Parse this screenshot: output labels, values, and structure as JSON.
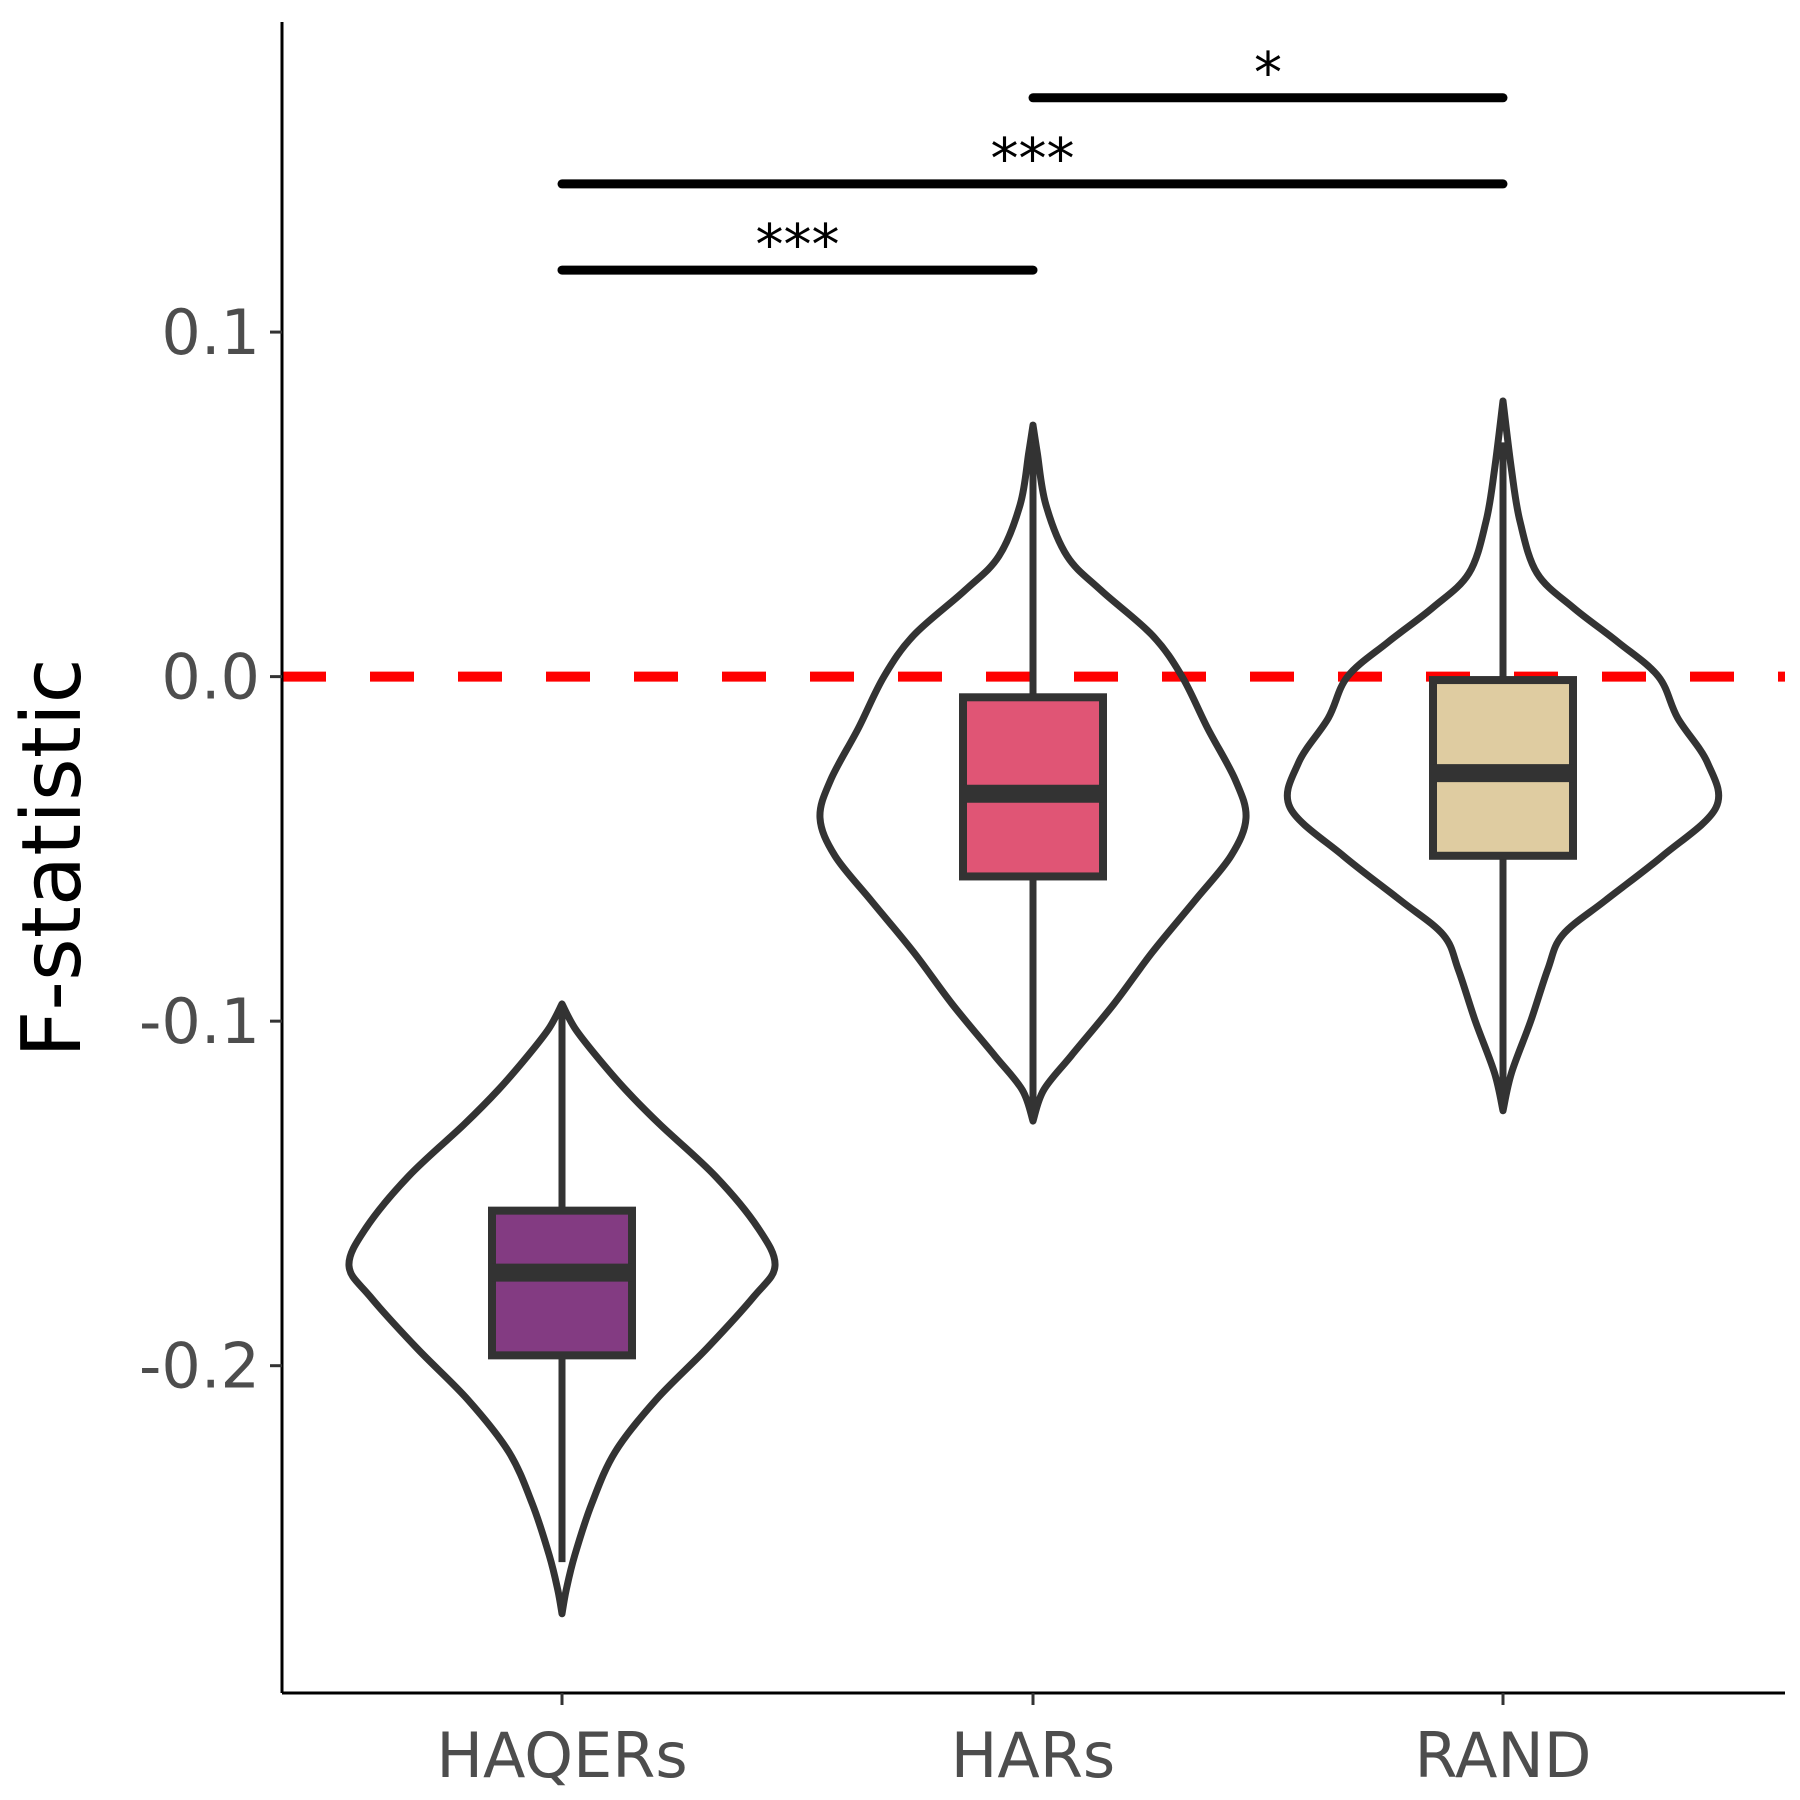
{
  "chart_data": {
    "type": "violin",
    "title": "",
    "xlabel": "",
    "ylabel": "F-statistic",
    "ylim": [
      -0.295,
      0.19
    ],
    "yticks": [
      -0.2,
      -0.1,
      0.0,
      0.1
    ],
    "ytick_labels": [
      "-0.2",
      "-0.1",
      "0.0",
      "0.1"
    ],
    "categories": [
      "HAQERs",
      "HARs",
      "RAND"
    ],
    "grid": false,
    "legend": "none",
    "reference_line": {
      "y": 0.0,
      "color": "#ff0000",
      "style": "dashed"
    },
    "groups": [
      {
        "name": "HAQERs",
        "fill": "#833b82",
        "box": {
          "q1": -0.197,
          "median": -0.173,
          "q3": -0.155,
          "whisker_low": -0.257,
          "whisker_high": -0.095
        },
        "violin_min": -0.272,
        "violin_max": -0.095,
        "violin_profile": [
          [
            -0.272,
            0.0
          ],
          [
            -0.265,
            0.02
          ],
          [
            -0.255,
            0.06
          ],
          [
            -0.24,
            0.14
          ],
          [
            -0.225,
            0.25
          ],
          [
            -0.21,
            0.44
          ],
          [
            -0.195,
            0.68
          ],
          [
            -0.18,
            0.9
          ],
          [
            -0.171,
            1.0
          ],
          [
            -0.16,
            0.92
          ],
          [
            -0.145,
            0.72
          ],
          [
            -0.13,
            0.46
          ],
          [
            -0.12,
            0.3
          ],
          [
            -0.11,
            0.16
          ],
          [
            -0.102,
            0.06
          ],
          [
            -0.095,
            0.0
          ]
        ]
      },
      {
        "name": "HARs",
        "fill": "#e05575",
        "box": {
          "q1": -0.058,
          "median": -0.034,
          "q3": -0.006,
          "whisker_low": -0.128,
          "whisker_high": 0.068
        },
        "violin_min": -0.129,
        "violin_max": 0.073,
        "violin_profile": [
          [
            -0.129,
            0.0
          ],
          [
            -0.12,
            0.05
          ],
          [
            -0.11,
            0.18
          ],
          [
            -0.095,
            0.38
          ],
          [
            -0.08,
            0.56
          ],
          [
            -0.065,
            0.76
          ],
          [
            -0.052,
            0.93
          ],
          [
            -0.041,
            1.0
          ],
          [
            -0.03,
            0.95
          ],
          [
            -0.015,
            0.82
          ],
          [
            0.0,
            0.7
          ],
          [
            0.012,
            0.56
          ],
          [
            0.025,
            0.32
          ],
          [
            0.035,
            0.16
          ],
          [
            0.05,
            0.06
          ],
          [
            0.065,
            0.02
          ],
          [
            0.073,
            0.0
          ]
        ]
      },
      {
        "name": "RAND",
        "fill": "#dfcca1",
        "box": {
          "q1": -0.052,
          "median": -0.028,
          "q3": -0.001,
          "whisker_low": -0.126,
          "whisker_high": 0.068
        },
        "violin_min": -0.126,
        "violin_max": 0.08,
        "violin_profile": [
          [
            -0.126,
            0.0
          ],
          [
            -0.115,
            0.04
          ],
          [
            -0.1,
            0.13
          ],
          [
            -0.085,
            0.21
          ],
          [
            -0.075,
            0.28
          ],
          [
            -0.065,
            0.48
          ],
          [
            -0.052,
            0.75
          ],
          [
            -0.038,
            1.0
          ],
          [
            -0.025,
            0.96
          ],
          [
            -0.012,
            0.82
          ],
          [
            0.0,
            0.73
          ],
          [
            0.01,
            0.54
          ],
          [
            0.02,
            0.33
          ],
          [
            0.03,
            0.16
          ],
          [
            0.045,
            0.08
          ],
          [
            0.06,
            0.04
          ],
          [
            0.08,
            0.0
          ]
        ]
      }
    ],
    "comparisons": [
      {
        "from": "HAQERs",
        "to": "HARs",
        "y": 0.118,
        "label": "***"
      },
      {
        "from": "HAQERs",
        "to": "RAND",
        "y": 0.143,
        "label": "***"
      },
      {
        "from": "HARs",
        "to": "RAND",
        "y": 0.168,
        "label": "*"
      }
    ]
  }
}
